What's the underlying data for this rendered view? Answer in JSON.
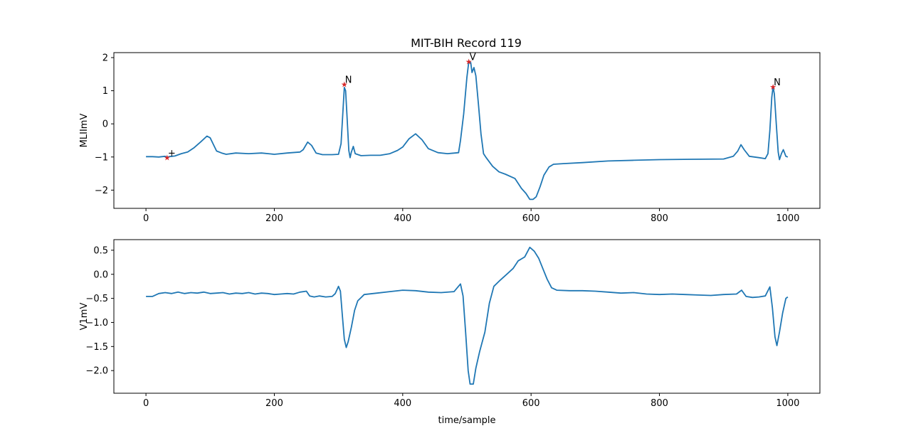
{
  "figure": {
    "title": "MIT-BIH Record 119"
  },
  "chart_data": [
    {
      "type": "line",
      "title": "MIT-BIH Record 119",
      "xlabel": "",
      "ylabel": "MLIImV",
      "xlim": [
        -50,
        1050
      ],
      "ylim": [
        -2.55,
        2.15
      ],
      "xticks": [
        0,
        200,
        400,
        600,
        800,
        1000
      ],
      "yticks": [
        -2,
        -1,
        0,
        1,
        2
      ],
      "ytick_labels": [
        "−2",
        "−1",
        "0",
        "1",
        "2"
      ],
      "grid": false,
      "color": "#1f77b4",
      "series": [
        {
          "points": [
            [
              0,
              -0.99
            ],
            [
              10,
              -0.99
            ],
            [
              20,
              -1.0
            ],
            [
              30,
              -0.98
            ],
            [
              33,
              -1.02
            ],
            [
              36,
              -0.99
            ],
            [
              45,
              -0.97
            ],
            [
              55,
              -0.9
            ],
            [
              65,
              -0.85
            ],
            [
              75,
              -0.72
            ],
            [
              85,
              -0.55
            ],
            [
              95,
              -0.37
            ],
            [
              100,
              -0.42
            ],
            [
              105,
              -0.62
            ],
            [
              110,
              -0.82
            ],
            [
              118,
              -0.88
            ],
            [
              125,
              -0.92
            ],
            [
              140,
              -0.88
            ],
            [
              160,
              -0.9
            ],
            [
              180,
              -0.88
            ],
            [
              200,
              -0.92
            ],
            [
              220,
              -0.88
            ],
            [
              240,
              -0.85
            ],
            [
              245,
              -0.78
            ],
            [
              252,
              -0.55
            ],
            [
              258,
              -0.65
            ],
            [
              265,
              -0.88
            ],
            [
              275,
              -0.93
            ],
            [
              290,
              -0.93
            ],
            [
              300,
              -0.92
            ],
            [
              304,
              -0.6
            ],
            [
              307,
              0.4
            ],
            [
              309,
              1.1
            ],
            [
              311,
              1.0
            ],
            [
              313,
              0.3
            ],
            [
              316,
              -0.8
            ],
            [
              318,
              -1.02
            ],
            [
              320,
              -0.85
            ],
            [
              323,
              -0.68
            ],
            [
              326,
              -0.9
            ],
            [
              335,
              -0.96
            ],
            [
              350,
              -0.95
            ],
            [
              365,
              -0.95
            ],
            [
              380,
              -0.9
            ],
            [
              392,
              -0.8
            ],
            [
              400,
              -0.7
            ],
            [
              410,
              -0.45
            ],
            [
              420,
              -0.3
            ],
            [
              430,
              -0.48
            ],
            [
              440,
              -0.75
            ],
            [
              455,
              -0.87
            ],
            [
              470,
              -0.9
            ],
            [
              487,
              -0.87
            ],
            [
              490,
              -0.5
            ],
            [
              495,
              0.3
            ],
            [
              500,
              1.4
            ],
            [
              503,
              1.88
            ],
            [
              506,
              1.85
            ],
            [
              508,
              1.55
            ],
            [
              511,
              1.7
            ],
            [
              514,
              1.45
            ],
            [
              518,
              0.6
            ],
            [
              522,
              -0.3
            ],
            [
              526,
              -0.9
            ],
            [
              530,
              -1.02
            ],
            [
              540,
              -1.28
            ],
            [
              550,
              -1.45
            ],
            [
              560,
              -1.52
            ],
            [
              575,
              -1.65
            ],
            [
              585,
              -1.95
            ],
            [
              592,
              -2.1
            ],
            [
              598,
              -2.28
            ],
            [
              603,
              -2.28
            ],
            [
              608,
              -2.2
            ],
            [
              614,
              -1.9
            ],
            [
              620,
              -1.55
            ],
            [
              628,
              -1.3
            ],
            [
              635,
              -1.22
            ],
            [
              650,
              -1.2
            ],
            [
              680,
              -1.17
            ],
            [
              720,
              -1.12
            ],
            [
              760,
              -1.1
            ],
            [
              800,
              -1.08
            ],
            [
              850,
              -1.07
            ],
            [
              900,
              -1.06
            ],
            [
              915,
              -0.98
            ],
            [
              922,
              -0.82
            ],
            [
              927,
              -0.63
            ],
            [
              932,
              -0.78
            ],
            [
              940,
              -0.98
            ],
            [
              955,
              -1.02
            ],
            [
              965,
              -1.05
            ],
            [
              969,
              -0.9
            ],
            [
              972,
              -0.2
            ],
            [
              975,
              0.8
            ],
            [
              977,
              1.12
            ],
            [
              979,
              0.9
            ],
            [
              982,
              0.0
            ],
            [
              985,
              -0.85
            ],
            [
              987,
              -1.08
            ],
            [
              990,
              -0.9
            ],
            [
              993,
              -0.78
            ],
            [
              997,
              -0.98
            ],
            [
              1000,
              -1.0
            ]
          ]
        }
      ],
      "annotations": [
        {
          "label": "+",
          "x": 33,
          "y": -1.02
        },
        {
          "label": "N",
          "x": 309,
          "y": 1.2
        },
        {
          "label": "V",
          "x": 503,
          "y": 1.88
        },
        {
          "label": "N",
          "x": 977,
          "y": 1.12
        }
      ]
    },
    {
      "type": "line",
      "title": "",
      "xlabel": "time/sample",
      "ylabel": "V1mV",
      "xlim": [
        -50,
        1050
      ],
      "ylim": [
        -2.47,
        0.72
      ],
      "xticks": [
        0,
        200,
        400,
        600,
        800,
        1000
      ],
      "yticks": [
        -2.0,
        -1.5,
        -1.0,
        -0.5,
        0.0,
        0.5
      ],
      "ytick_labels": [
        "−2.0",
        "−1.5",
        "−1.0",
        "−0.5",
        "0.0",
        "0.5"
      ],
      "grid": false,
      "color": "#1f77b4",
      "series": [
        {
          "points": [
            [
              0,
              -0.46
            ],
            [
              10,
              -0.46
            ],
            [
              20,
              -0.4
            ],
            [
              30,
              -0.38
            ],
            [
              40,
              -0.4
            ],
            [
              50,
              -0.37
            ],
            [
              60,
              -0.4
            ],
            [
              70,
              -0.38
            ],
            [
              80,
              -0.39
            ],
            [
              90,
              -0.37
            ],
            [
              100,
              -0.4
            ],
            [
              110,
              -0.39
            ],
            [
              120,
              -0.38
            ],
            [
              130,
              -0.41
            ],
            [
              140,
              -0.39
            ],
            [
              150,
              -0.4
            ],
            [
              160,
              -0.38
            ],
            [
              170,
              -0.41
            ],
            [
              180,
              -0.39
            ],
            [
              190,
              -0.4
            ],
            [
              200,
              -0.42
            ],
            [
              210,
              -0.41
            ],
            [
              220,
              -0.4
            ],
            [
              230,
              -0.41
            ],
            [
              240,
              -0.37
            ],
            [
              250,
              -0.35
            ],
            [
              255,
              -0.45
            ],
            [
              262,
              -0.47
            ],
            [
              270,
              -0.45
            ],
            [
              280,
              -0.47
            ],
            [
              290,
              -0.46
            ],
            [
              295,
              -0.4
            ],
            [
              300,
              -0.25
            ],
            [
              303,
              -0.35
            ],
            [
              306,
              -0.85
            ],
            [
              309,
              -1.35
            ],
            [
              312,
              -1.52
            ],
            [
              315,
              -1.4
            ],
            [
              320,
              -1.1
            ],
            [
              325,
              -0.75
            ],
            [
              330,
              -0.55
            ],
            [
              340,
              -0.42
            ],
            [
              360,
              -0.39
            ],
            [
              380,
              -0.36
            ],
            [
              400,
              -0.33
            ],
            [
              420,
              -0.34
            ],
            [
              440,
              -0.37
            ],
            [
              460,
              -0.38
            ],
            [
              480,
              -0.36
            ],
            [
              490,
              -0.2
            ],
            [
              494,
              -0.45
            ],
            [
              498,
              -1.2
            ],
            [
              502,
              -2.0
            ],
            [
              505,
              -2.28
            ],
            [
              510,
              -2.28
            ],
            [
              514,
              -1.95
            ],
            [
              520,
              -1.6
            ],
            [
              528,
              -1.2
            ],
            [
              535,
              -0.6
            ],
            [
              542,
              -0.25
            ],
            [
              552,
              -0.12
            ],
            [
              562,
              0.0
            ],
            [
              572,
              0.12
            ],
            [
              580,
              0.28
            ],
            [
              590,
              0.36
            ],
            [
              598,
              0.56
            ],
            [
              605,
              0.48
            ],
            [
              612,
              0.33
            ],
            [
              618,
              0.13
            ],
            [
              625,
              -0.1
            ],
            [
              632,
              -0.28
            ],
            [
              640,
              -0.33
            ],
            [
              660,
              -0.34
            ],
            [
              680,
              -0.34
            ],
            [
              700,
              -0.35
            ],
            [
              720,
              -0.37
            ],
            [
              740,
              -0.39
            ],
            [
              760,
              -0.38
            ],
            [
              780,
              -0.41
            ],
            [
              800,
              -0.42
            ],
            [
              820,
              -0.41
            ],
            [
              840,
              -0.42
            ],
            [
              860,
              -0.43
            ],
            [
              880,
              -0.44
            ],
            [
              900,
              -0.42
            ],
            [
              920,
              -0.41
            ],
            [
              928,
              -0.33
            ],
            [
              935,
              -0.46
            ],
            [
              945,
              -0.48
            ],
            [
              955,
              -0.47
            ],
            [
              965,
              -0.45
            ],
            [
              972,
              -0.26
            ],
            [
              976,
              -0.7
            ],
            [
              980,
              -1.3
            ],
            [
              983,
              -1.48
            ],
            [
              987,
              -1.2
            ],
            [
              992,
              -0.8
            ],
            [
              997,
              -0.5
            ],
            [
              1000,
              -0.47
            ]
          ]
        }
      ]
    }
  ]
}
